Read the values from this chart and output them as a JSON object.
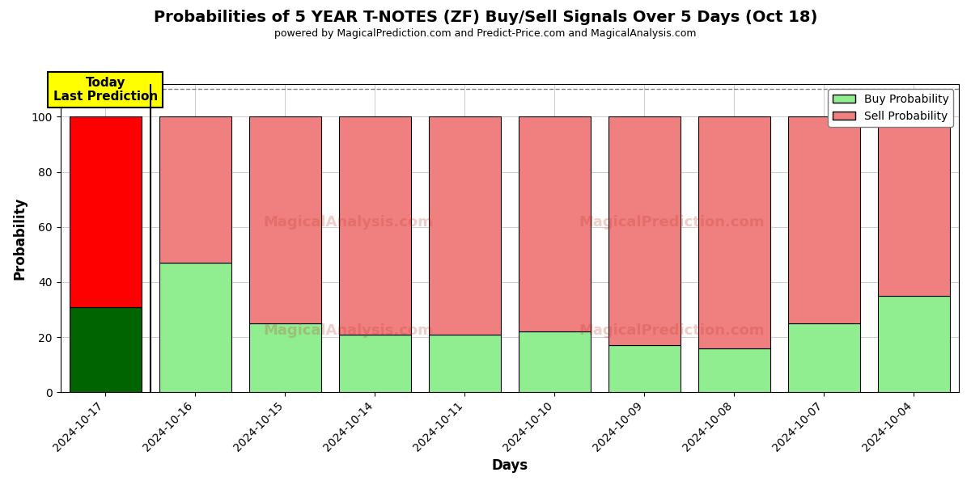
{
  "title": "Probabilities of 5 YEAR T-NOTES (ZF) Buy/Sell Signals Over 5 Days (Oct 18)",
  "subtitle": "powered by MagicalPrediction.com and Predict-Price.com and MagicalAnalysis.com",
  "xlabel": "Days",
  "ylabel": "Probability",
  "categories": [
    "2024-10-17",
    "2024-10-16",
    "2024-10-15",
    "2024-10-14",
    "2024-10-11",
    "2024-10-10",
    "2024-10-09",
    "2024-10-08",
    "2024-10-07",
    "2024-10-04"
  ],
  "buy_values": [
    31,
    47,
    25,
    21,
    21,
    22,
    17,
    16,
    25,
    35
  ],
  "sell_values": [
    69,
    53,
    75,
    79,
    79,
    78,
    83,
    84,
    75,
    65
  ],
  "buy_color_today": "#006400",
  "sell_color_today": "#FF0000",
  "buy_color_normal": "#90EE90",
  "sell_color_normal": "#F08080",
  "bar_edge_color": "black",
  "bar_edge_width": 0.8,
  "ylim": [
    0,
    112
  ],
  "yticks": [
    0,
    20,
    40,
    60,
    80,
    100
  ],
  "dashed_line_y": 110,
  "legend_buy_label": "Buy Probability",
  "legend_sell_label": "Sell Probability",
  "annotation_text": "Today\nLast Prediction",
  "watermark_texts": [
    "MagicalAnalysis.com",
    "MagicalPrediction.com"
  ],
  "background_color": "#ffffff",
  "grid_color": "#cccccc"
}
